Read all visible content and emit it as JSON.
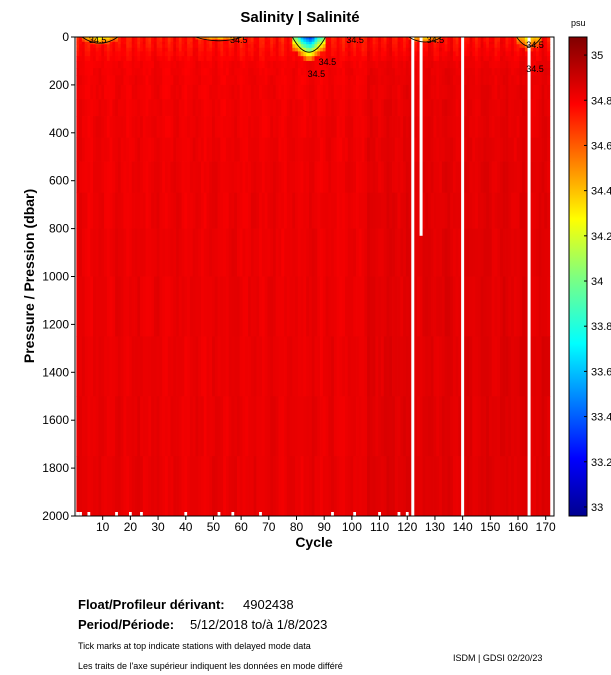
{
  "chart_data": {
    "type": "heatmap",
    "title": "Salinity | Salinité",
    "xlabel": "Cycle",
    "ylabel": "Pressure / Pression (dbar)",
    "xlim": [
      0,
      173
    ],
    "ylim": [
      2000,
      0
    ],
    "x_ticks": [
      10,
      20,
      30,
      40,
      50,
      60,
      70,
      80,
      90,
      100,
      110,
      120,
      130,
      140,
      150,
      160,
      170
    ],
    "y_ticks": [
      0,
      200,
      400,
      600,
      800,
      1000,
      1200,
      1400,
      1600,
      1800,
      2000
    ],
    "colorbar": {
      "unit": "psu",
      "ticks": [
        "35",
        "34.8",
        "34.6",
        "34.4",
        "34.2",
        "34",
        "33.8",
        "33.6",
        "33.4",
        "33.2",
        "33"
      ],
      "range": [
        32.96,
        35.08
      ]
    },
    "contour_labels": [
      "34.5",
      "34.5",
      "34.5",
      "34.5",
      "34.5",
      "34.5",
      "34.5",
      "34.5"
    ],
    "gaps": [
      {
        "cycle": 122,
        "from": 0,
        "to": 2000
      },
      {
        "cycle": 125,
        "from": 0,
        "to": 830
      },
      {
        "cycle": 140,
        "from": 0,
        "to": 2000
      },
      {
        "cycle": 164,
        "from": 0,
        "to": 2000
      }
    ],
    "surface_fresh_patches": [
      {
        "from_cycle": 3,
        "to_cycle": 15,
        "depth": 35,
        "min_salinity": 34.3
      },
      {
        "from_cycle": 44,
        "to_cycle": 60,
        "depth": 15,
        "min_salinity": 34.35
      },
      {
        "from_cycle": 79,
        "to_cycle": 90,
        "depth": 110,
        "min_salinity": 33.3
      },
      {
        "from_cycle": 121,
        "to_cycle": 132,
        "depth": 25,
        "min_salinity": 34.4
      },
      {
        "from_cycle": 160,
        "to_cycle": 168,
        "depth": 60,
        "min_salinity": 34.3
      }
    ]
  },
  "info": {
    "float_label": "Float/Profileur dérivant:",
    "float_id": "4902438",
    "period_label": "Period/Période:",
    "period_value": "5/12/2018  to/à  1/8/2023",
    "note_en": "Tick marks at top indicate stations with delayed mode data",
    "note_fr": "Les traits de l'axe supérieur indiquent les données en mode différé",
    "credit": "ISDM | GDSI  02/20/23"
  }
}
